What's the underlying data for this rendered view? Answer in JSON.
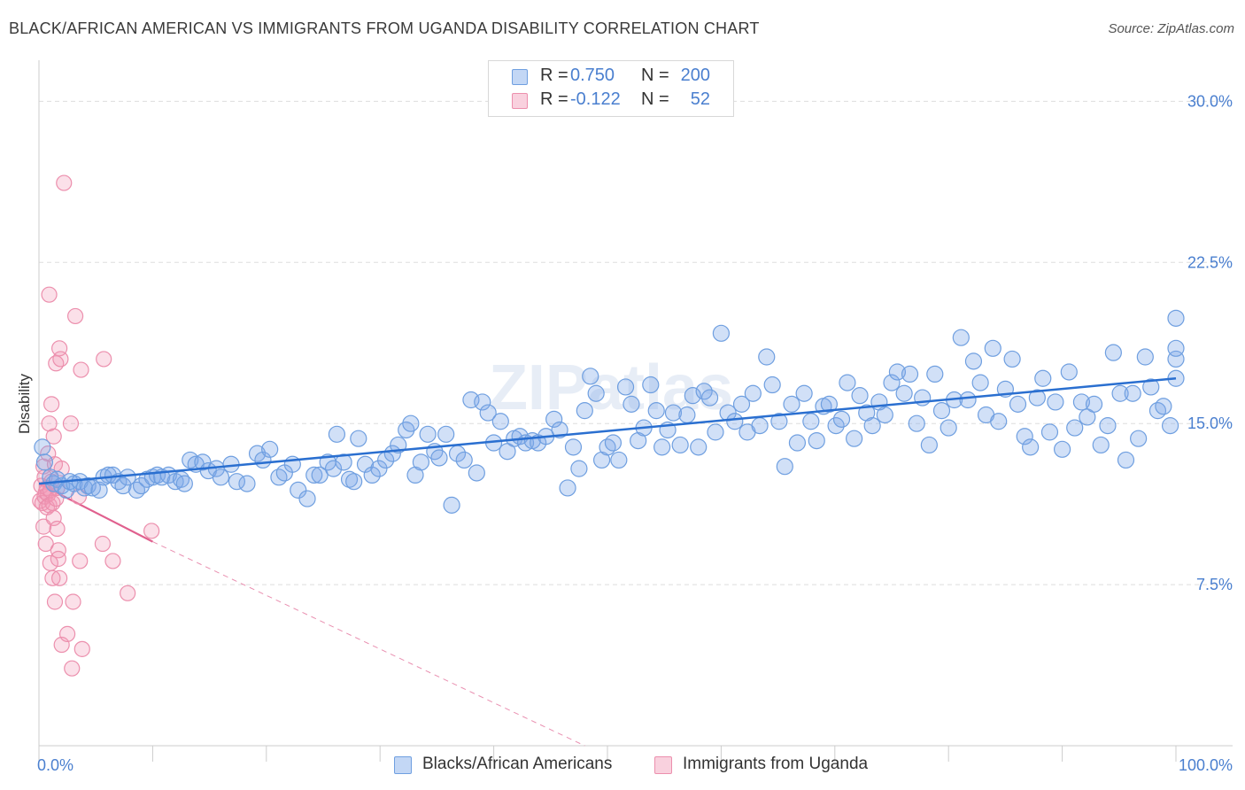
{
  "title": "BLACK/AFRICAN AMERICAN VS IMMIGRANTS FROM UGANDA DISABILITY CORRELATION CHART",
  "source": "Source: ZipAtlas.com",
  "watermark": "ZIPatlas",
  "legend": {
    "rows": [
      {
        "r_label": "R =",
        "r_value": "0.750",
        "n_label": "N =",
        "n_value": "200",
        "color": "#7aa7e8"
      },
      {
        "r_label": "R =",
        "r_value": "-0.122",
        "n_label": "N =",
        "n_value": "52",
        "color": "#f199b5"
      }
    ]
  },
  "bottom_legend": [
    {
      "label": "Blacks/African Americans",
      "color": "#7aa7e8"
    },
    {
      "label": "Immigrants from Uganda",
      "color": "#f199b5"
    }
  ],
  "colors": {
    "blue_fill": "rgba(122,167,232,0.35)",
    "blue_stroke": "#6f9fe0",
    "blue_line": "#2a6fd0",
    "pink_fill": "rgba(241,153,181,0.30)",
    "pink_stroke": "#ec8fad",
    "pink_line": "#e0608e",
    "grid": "#dddddd",
    "tick_text": "#4a7fcf"
  },
  "chart_data": {
    "type": "scatter",
    "title": "BLACK/AFRICAN AMERICAN VS IMMIGRANTS FROM UGANDA DISABILITY CORRELATION CHART",
    "xlabel": "",
    "ylabel": "Disability",
    "xlim": [
      0,
      100
    ],
    "ylim": [
      0,
      31.5
    ],
    "x_tick_labels": [
      "0.0%",
      "100.0%"
    ],
    "y_ticks": [
      7.5,
      15.0,
      22.5,
      30.0
    ],
    "y_tick_labels": [
      "7.5%",
      "15.0%",
      "22.5%",
      "30.0%"
    ],
    "grid": true,
    "legend_position": "top-center",
    "series": [
      {
        "name": "Blacks/African Americans",
        "r": 0.75,
        "n": 200,
        "trend": {
          "x": [
            0,
            100
          ],
          "y": [
            12.2,
            17.1
          ]
        },
        "points": [
          [
            0.3,
            13.9
          ],
          [
            0.5,
            13.2
          ],
          [
            1.0,
            12.5
          ],
          [
            1.3,
            12.2
          ],
          [
            1.6,
            12.4
          ],
          [
            2.0,
            12.1
          ],
          [
            2.4,
            11.9
          ],
          [
            2.7,
            12.3
          ],
          [
            3.1,
            12.2
          ],
          [
            3.6,
            12.3
          ],
          [
            4.0,
            12.0
          ],
          [
            4.3,
            12.1
          ],
          [
            4.7,
            12.0
          ],
          [
            5.3,
            11.9
          ],
          [
            5.7,
            12.5
          ],
          [
            6.1,
            12.6
          ],
          [
            6.5,
            12.6
          ],
          [
            7.0,
            12.3
          ],
          [
            7.4,
            12.1
          ],
          [
            7.8,
            12.5
          ],
          [
            8.6,
            11.9
          ],
          [
            9.0,
            12.1
          ],
          [
            9.5,
            12.4
          ],
          [
            10.0,
            12.5
          ],
          [
            10.4,
            12.6
          ],
          [
            10.8,
            12.5
          ],
          [
            11.4,
            12.6
          ],
          [
            12.0,
            12.3
          ],
          [
            12.5,
            12.4
          ],
          [
            12.8,
            12.2
          ],
          [
            13.3,
            13.3
          ],
          [
            13.8,
            13.1
          ],
          [
            14.4,
            13.2
          ],
          [
            14.9,
            12.8
          ],
          [
            15.6,
            12.9
          ],
          [
            16.0,
            12.5
          ],
          [
            16.9,
            13.1
          ],
          [
            17.4,
            12.3
          ],
          [
            18.3,
            12.2
          ],
          [
            19.2,
            13.6
          ],
          [
            19.7,
            13.3
          ],
          [
            20.3,
            13.8
          ],
          [
            21.1,
            12.5
          ],
          [
            21.6,
            12.7
          ],
          [
            22.3,
            13.1
          ],
          [
            22.8,
            11.9
          ],
          [
            23.6,
            11.5
          ],
          [
            24.2,
            12.6
          ],
          [
            24.7,
            12.6
          ],
          [
            25.4,
            13.2
          ],
          [
            25.9,
            12.9
          ],
          [
            26.2,
            14.5
          ],
          [
            26.8,
            13.2
          ],
          [
            27.3,
            12.4
          ],
          [
            27.7,
            12.3
          ],
          [
            28.1,
            14.3
          ],
          [
            28.7,
            13.1
          ],
          [
            29.3,
            12.6
          ],
          [
            29.9,
            12.9
          ],
          [
            30.5,
            13.3
          ],
          [
            31.1,
            13.6
          ],
          [
            31.6,
            14.0
          ],
          [
            32.3,
            14.7
          ],
          [
            32.7,
            15.0
          ],
          [
            33.1,
            12.6
          ],
          [
            33.6,
            13.2
          ],
          [
            34.2,
            14.5
          ],
          [
            34.8,
            13.7
          ],
          [
            35.2,
            13.4
          ],
          [
            35.8,
            14.5
          ],
          [
            36.3,
            11.2
          ],
          [
            36.8,
            13.6
          ],
          [
            37.4,
            13.3
          ],
          [
            38.0,
            16.1
          ],
          [
            38.5,
            12.7
          ],
          [
            39.0,
            16.0
          ],
          [
            39.5,
            15.5
          ],
          [
            40.0,
            14.1
          ],
          [
            40.6,
            15.1
          ],
          [
            41.2,
            13.7
          ],
          [
            41.8,
            14.3
          ],
          [
            42.3,
            14.4
          ],
          [
            42.8,
            14.1
          ],
          [
            43.4,
            14.2
          ],
          [
            43.9,
            14.1
          ],
          [
            44.6,
            14.4
          ],
          [
            45.3,
            15.2
          ],
          [
            45.8,
            14.7
          ],
          [
            46.5,
            12.0
          ],
          [
            47.0,
            13.9
          ],
          [
            47.5,
            12.9
          ],
          [
            48.0,
            15.6
          ],
          [
            48.5,
            17.2
          ],
          [
            49.0,
            16.4
          ],
          [
            49.5,
            13.3
          ],
          [
            50.0,
            13.9
          ],
          [
            50.5,
            14.1
          ],
          [
            51.0,
            13.3
          ],
          [
            51.6,
            16.7
          ],
          [
            52.1,
            15.9
          ],
          [
            52.7,
            14.2
          ],
          [
            53.2,
            14.8
          ],
          [
            53.8,
            16.8
          ],
          [
            54.3,
            15.6
          ],
          [
            54.8,
            13.9
          ],
          [
            55.3,
            14.7
          ],
          [
            55.8,
            15.5
          ],
          [
            56.4,
            14.0
          ],
          [
            57.0,
            15.4
          ],
          [
            57.5,
            16.3
          ],
          [
            58.0,
            13.9
          ],
          [
            58.5,
            16.5
          ],
          [
            59.0,
            16.2
          ],
          [
            59.5,
            14.6
          ],
          [
            60.0,
            19.2
          ],
          [
            60.6,
            15.5
          ],
          [
            61.2,
            15.1
          ],
          [
            61.8,
            15.9
          ],
          [
            62.3,
            14.6
          ],
          [
            62.8,
            16.4
          ],
          [
            63.4,
            14.9
          ],
          [
            64.0,
            18.1
          ],
          [
            64.5,
            16.8
          ],
          [
            65.1,
            15.1
          ],
          [
            65.6,
            13.0
          ],
          [
            66.2,
            15.9
          ],
          [
            66.7,
            14.1
          ],
          [
            67.3,
            16.4
          ],
          [
            67.9,
            15.1
          ],
          [
            68.4,
            14.2
          ],
          [
            69.0,
            15.8
          ],
          [
            69.5,
            15.9
          ],
          [
            70.1,
            14.9
          ],
          [
            70.6,
            15.2
          ],
          [
            71.1,
            16.9
          ],
          [
            71.7,
            14.3
          ],
          [
            72.2,
            16.3
          ],
          [
            72.8,
            15.5
          ],
          [
            73.3,
            14.9
          ],
          [
            73.9,
            16.0
          ],
          [
            74.4,
            15.4
          ],
          [
            75.0,
            16.9
          ],
          [
            75.5,
            17.4
          ],
          [
            76.1,
            16.4
          ],
          [
            76.6,
            17.3
          ],
          [
            77.2,
            15.0
          ],
          [
            77.7,
            16.2
          ],
          [
            78.3,
            14.0
          ],
          [
            78.8,
            17.3
          ],
          [
            79.4,
            15.6
          ],
          [
            80.0,
            14.8
          ],
          [
            80.5,
            16.1
          ],
          [
            81.1,
            19.0
          ],
          [
            81.7,
            16.1
          ],
          [
            82.2,
            17.9
          ],
          [
            82.8,
            16.9
          ],
          [
            83.3,
            15.4
          ],
          [
            83.9,
            18.5
          ],
          [
            84.4,
            15.1
          ],
          [
            85.0,
            16.6
          ],
          [
            85.6,
            18.0
          ],
          [
            86.1,
            15.9
          ],
          [
            86.7,
            14.4
          ],
          [
            87.2,
            13.9
          ],
          [
            87.8,
            16.2
          ],
          [
            88.3,
            17.1
          ],
          [
            88.9,
            14.6
          ],
          [
            89.4,
            16.0
          ],
          [
            90.0,
            13.8
          ],
          [
            90.6,
            17.4
          ],
          [
            91.1,
            14.8
          ],
          [
            91.7,
            16.0
          ],
          [
            92.2,
            15.3
          ],
          [
            92.8,
            15.9
          ],
          [
            93.4,
            14.0
          ],
          [
            94.0,
            14.9
          ],
          [
            94.5,
            18.3
          ],
          [
            95.1,
            16.4
          ],
          [
            95.6,
            13.3
          ],
          [
            96.2,
            16.4
          ],
          [
            96.7,
            14.3
          ],
          [
            97.3,
            18.1
          ],
          [
            97.8,
            16.7
          ],
          [
            98.4,
            15.6
          ],
          [
            98.9,
            15.8
          ],
          [
            99.5,
            14.9
          ],
          [
            100.0,
            18.0
          ],
          [
            100.5,
            18.5
          ],
          [
            101.0,
            19.9
          ],
          [
            101.6,
            17.1
          ]
        ]
      },
      {
        "name": "Immigrants from Uganda",
        "r": -0.122,
        "n": 52,
        "trend": {
          "x": [
            0,
            10
          ],
          "y": [
            12.2,
            9.5
          ],
          "dashed_to": {
            "x": 48.0,
            "y": 0
          }
        },
        "points": [
          [
            0.1,
            11.4
          ],
          [
            0.2,
            12.1
          ],
          [
            0.3,
            11.3
          ],
          [
            0.4,
            10.2
          ],
          [
            0.4,
            13.0
          ],
          [
            0.5,
            11.6
          ],
          [
            0.5,
            12.5
          ],
          [
            0.6,
            11.8
          ],
          [
            0.6,
            9.4
          ],
          [
            0.7,
            12.0
          ],
          [
            0.7,
            11.1
          ],
          [
            0.8,
            11.7
          ],
          [
            0.8,
            13.6
          ],
          [
            0.9,
            11.2
          ],
          [
            0.9,
            15.0
          ],
          [
            1.0,
            11.9
          ],
          [
            1.0,
            8.5
          ],
          [
            1.1,
            12.3
          ],
          [
            1.1,
            15.9
          ],
          [
            1.2,
            11.3
          ],
          [
            1.2,
            7.8
          ],
          [
            1.3,
            10.6
          ],
          [
            1.3,
            14.4
          ],
          [
            1.4,
            13.1
          ],
          [
            1.4,
            6.7
          ],
          [
            1.5,
            11.5
          ],
          [
            1.5,
            17.8
          ],
          [
            1.6,
            12.0
          ],
          [
            1.6,
            10.1
          ],
          [
            1.7,
            9.1
          ],
          [
            1.7,
            8.7
          ],
          [
            1.8,
            18.5
          ],
          [
            1.8,
            7.8
          ],
          [
            1.9,
            18.0
          ],
          [
            2.0,
            12.9
          ],
          [
            2.0,
            4.7
          ],
          [
            2.2,
            26.2
          ],
          [
            2.5,
            5.2
          ],
          [
            2.8,
            15.0
          ],
          [
            2.9,
            3.6
          ],
          [
            3.0,
            6.7
          ],
          [
            3.2,
            20.0
          ],
          [
            3.5,
            11.6
          ],
          [
            3.6,
            8.6
          ],
          [
            3.7,
            17.5
          ],
          [
            3.8,
            4.5
          ],
          [
            5.6,
            9.4
          ],
          [
            5.7,
            18.0
          ],
          [
            6.5,
            8.6
          ],
          [
            7.8,
            7.1
          ],
          [
            9.9,
            10.0
          ],
          [
            0.9,
            21.0
          ]
        ]
      }
    ]
  }
}
